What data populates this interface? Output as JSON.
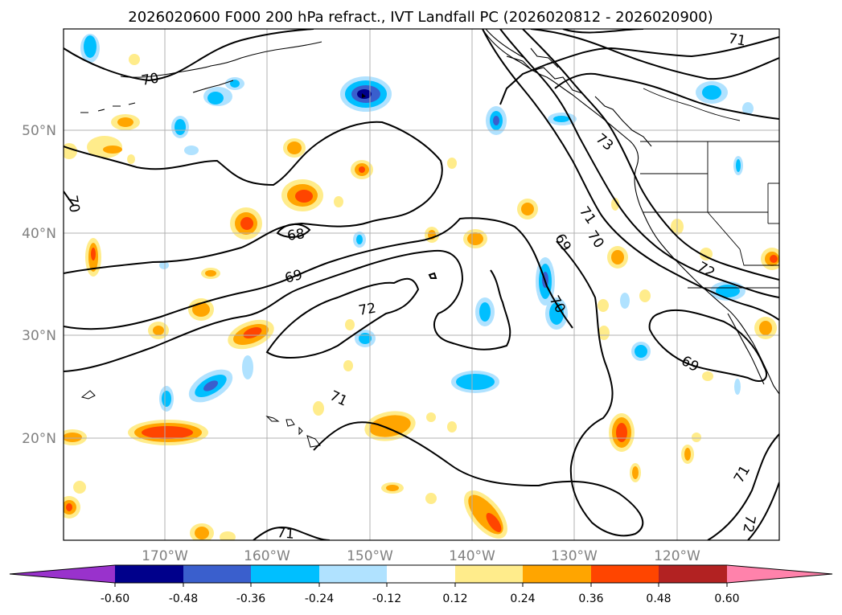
{
  "title": "2026020600 F000 200 hPa refract., IVT Landfall PC (2026020812 - 2026020900)",
  "map": {
    "lon_ticks": [
      "170°W",
      "160°W",
      "150°W",
      "140°W",
      "130°W",
      "120°W"
    ],
    "lat_ticks": [
      "50°N",
      "40°N",
      "30°N",
      "20°N"
    ],
    "contour_labels": [
      {
        "id": "c70a",
        "text": "70"
      },
      {
        "id": "c70b",
        "text": "70"
      },
      {
        "id": "c68",
        "text": "68"
      },
      {
        "id": "c69a",
        "text": "69"
      },
      {
        "id": "c72a",
        "text": "72"
      },
      {
        "id": "c71a",
        "text": "71"
      },
      {
        "id": "c71b",
        "text": "71"
      },
      {
        "id": "c73",
        "text": "73"
      },
      {
        "id": "c71c",
        "text": "71"
      },
      {
        "id": "c70c",
        "text": "70"
      },
      {
        "id": "c69b",
        "text": "69"
      },
      {
        "id": "c72b",
        "text": "72"
      },
      {
        "id": "c70d",
        "text": "70"
      },
      {
        "id": "c69c",
        "text": "69"
      },
      {
        "id": "c71d",
        "text": "71"
      },
      {
        "id": "c71e",
        "text": "71"
      },
      {
        "id": "c72c",
        "text": "72"
      }
    ]
  },
  "colorbar": {
    "colors": [
      "#9932cc",
      "#00008b",
      "#3a5fcd",
      "#00bfff",
      "#b0e2ff",
      "#ffffff",
      "#ffec8b",
      "#ffa500",
      "#ff4500",
      "#b22222",
      "#ff82ab"
    ],
    "tick_labels": [
      "-0.60",
      "-0.48",
      "-0.36",
      "-0.24",
      "-0.12",
      "0.12",
      "0.24",
      "0.36",
      "0.48",
      "0.60"
    ]
  }
}
